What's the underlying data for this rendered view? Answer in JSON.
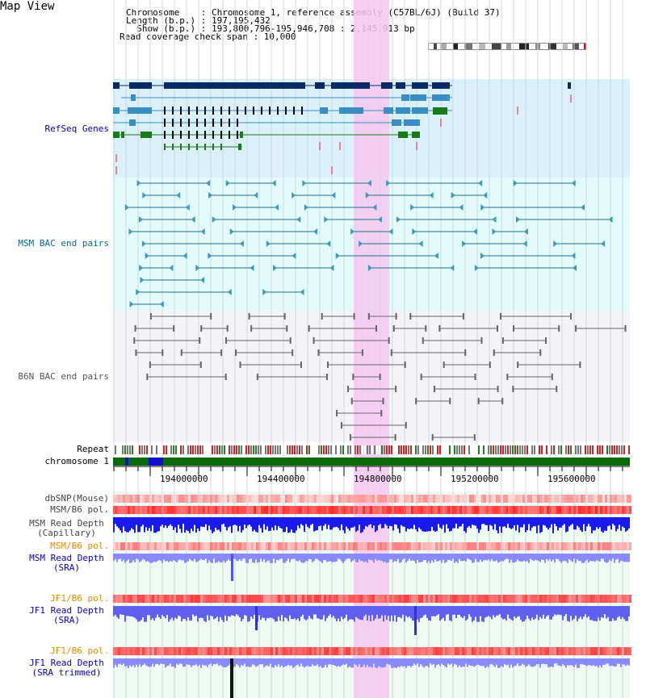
{
  "title": "Map View",
  "header": {
    "line1": "Chromosome    : Chromosome 1, reference assembly (C57BL/6J) (Build 37)",
    "line2": "Length (b.p.) : 197,195,432",
    "line3": "  Show (b.p.) : 193,800,796-195,946,708 : 2,145,913 bp",
    "line4": "Read coverage check span : 10,000"
  },
  "tracks": {
    "refseq": "RefSeq Genes",
    "msm_bac": "MSM BAC end pairs",
    "b6n_bac": "B6N BAC end pairs",
    "repeat": "Repeat",
    "chromosome": "chromosome 1",
    "dbsnp": "dbSNP(Mouse)",
    "msm_pol": "MSM/B6 pol.",
    "msm_depth_cap1": "MSM Read Depth",
    "msm_depth_cap2": "(Capillary)",
    "msm_pol2": "MSM/B6 pol.",
    "msm_depth_sra1": "MSM Read Depth",
    "msm_depth_sra2": "(SRA)",
    "jf1_pol": "JF1/B6 pol.",
    "jf1_depth1": "JF1 Read Depth",
    "jf1_depth2": "(SRA)",
    "jf1_pol2": "JF1/B6 pol.",
    "jf1_trim1": "JF1 Read Depth",
    "jf1_trim2": "(SRA trimmed)"
  },
  "ticks": [
    "194000000",
    "194400000",
    "194800000",
    "195200000",
    "195600000"
  ],
  "colors": {
    "refseq_label": "#0000aa",
    "msm_label": "#006b8f",
    "b6n_label": "#555555",
    "pol_orange": "#e08a00",
    "depth_blue": "#0000cc",
    "highlight": "#f5c8f0"
  }
}
